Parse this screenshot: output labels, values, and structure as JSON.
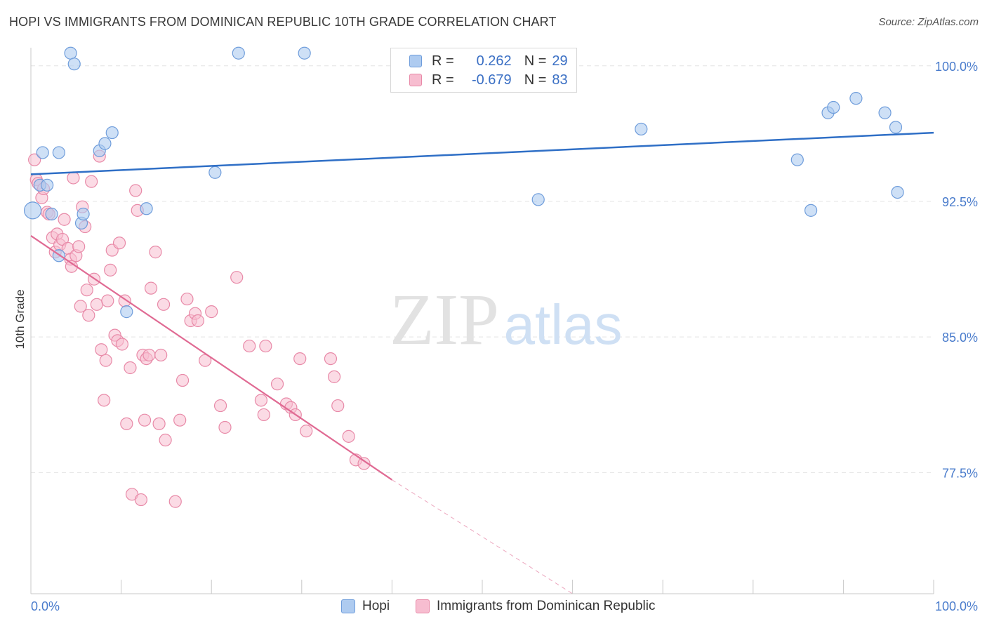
{
  "title": "HOPI VS IMMIGRANTS FROM DOMINICAN REPUBLIC 10TH GRADE CORRELATION CHART",
  "source": "Source: ZipAtlas.com",
  "watermark": {
    "zip": "ZIP",
    "atlas": "atlas"
  },
  "colors": {
    "hopi_fill": "#aecbf0",
    "hopi_stroke": "#6f9ddb",
    "hopi_line": "#2f6fc6",
    "dom_fill": "#f7bdd0",
    "dom_stroke": "#e88aa8",
    "dom_line": "#e06a93",
    "axis_text": "#4a7ccc",
    "grid": "#e4e4e4"
  },
  "legend": {
    "rows": [
      {
        "r_label": "R =",
        "r_value": "0.262",
        "n_label": "N =",
        "n_value": "29"
      },
      {
        "r_label": "R =",
        "r_value": "-0.679",
        "n_label": "N =",
        "n_value": "83"
      }
    ]
  },
  "bottom_legend": {
    "hopi": "Hopi",
    "dom": "Immigrants from Dominican Republic"
  },
  "chart_data": {
    "type": "scatter",
    "title": "HOPI VS IMMIGRANTS FROM DOMINICAN REPUBLIC 10TH GRADE CORRELATION CHART",
    "xlabel": "",
    "ylabel": "10th Grade",
    "xlim": [
      0,
      100
    ],
    "ylim": [
      70.8,
      101.0
    ],
    "x_tick_labels": [
      {
        "value": 0,
        "label": "0.0%"
      },
      {
        "value": 100,
        "label": "100.0%"
      }
    ],
    "y_ticks": [
      {
        "value": 100.0,
        "label": "100.0%"
      },
      {
        "value": 92.5,
        "label": "92.5%"
      },
      {
        "value": 85.0,
        "label": "85.0%"
      },
      {
        "value": 77.5,
        "label": "77.5%"
      }
    ],
    "series": [
      {
        "name": "Hopi",
        "points": [
          [
            0.2,
            92.0
          ],
          [
            1.3,
            95.2
          ],
          [
            1.0,
            93.4
          ],
          [
            1.8,
            93.4
          ],
          [
            2.3,
            91.8
          ],
          [
            3.1,
            95.2
          ],
          [
            3.1,
            89.5
          ],
          [
            4.4,
            100.7
          ],
          [
            4.8,
            100.1
          ],
          [
            5.6,
            91.3
          ],
          [
            5.8,
            91.8
          ],
          [
            7.6,
            95.3
          ],
          [
            8.2,
            95.7
          ],
          [
            9.0,
            96.3
          ],
          [
            10.6,
            86.4
          ],
          [
            12.8,
            92.1
          ],
          [
            20.4,
            94.1
          ],
          [
            23.0,
            100.7
          ],
          [
            30.3,
            100.7
          ],
          [
            56.2,
            92.6
          ],
          [
            67.6,
            96.5
          ],
          [
            84.9,
            94.8
          ],
          [
            86.4,
            92.0
          ],
          [
            88.3,
            97.4
          ],
          [
            88.9,
            97.7
          ],
          [
            91.4,
            98.2
          ],
          [
            94.6,
            97.4
          ],
          [
            95.8,
            96.6
          ],
          [
            96.0,
            93.0
          ]
        ],
        "trend": {
          "x1": 0,
          "y1": 94.0,
          "x2": 100,
          "y2": 96.3
        }
      },
      {
        "name": "Immigrants from Dominican Republic",
        "points": [
          [
            0.4,
            94.8
          ],
          [
            0.6,
            93.7
          ],
          [
            0.8,
            93.5
          ],
          [
            1.2,
            92.7
          ],
          [
            1.4,
            93.2
          ],
          [
            1.8,
            91.9
          ],
          [
            2.0,
            91.8
          ],
          [
            2.4,
            90.5
          ],
          [
            2.7,
            89.7
          ],
          [
            2.9,
            90.7
          ],
          [
            3.2,
            90.1
          ],
          [
            3.5,
            90.4
          ],
          [
            3.7,
            91.5
          ],
          [
            4.1,
            89.9
          ],
          [
            4.4,
            89.3
          ],
          [
            4.5,
            88.9
          ],
          [
            4.7,
            93.8
          ],
          [
            5.0,
            89.5
          ],
          [
            5.3,
            90.0
          ],
          [
            5.5,
            86.7
          ],
          [
            5.7,
            92.2
          ],
          [
            6.0,
            91.1
          ],
          [
            6.2,
            87.6
          ],
          [
            6.4,
            86.2
          ],
          [
            6.7,
            93.6
          ],
          [
            7.0,
            88.2
          ],
          [
            7.3,
            86.8
          ],
          [
            7.6,
            95.0
          ],
          [
            7.8,
            84.3
          ],
          [
            8.1,
            81.5
          ],
          [
            8.3,
            83.7
          ],
          [
            8.5,
            87.0
          ],
          [
            8.8,
            88.7
          ],
          [
            9.0,
            89.8
          ],
          [
            9.3,
            85.1
          ],
          [
            9.6,
            84.8
          ],
          [
            9.8,
            90.2
          ],
          [
            10.1,
            84.6
          ],
          [
            10.4,
            87.0
          ],
          [
            10.6,
            80.2
          ],
          [
            11.0,
            83.3
          ],
          [
            11.2,
            76.3
          ],
          [
            11.6,
            93.1
          ],
          [
            11.8,
            92.0
          ],
          [
            12.2,
            76.0
          ],
          [
            12.4,
            84.0
          ],
          [
            12.6,
            80.4
          ],
          [
            12.8,
            83.8
          ],
          [
            13.1,
            84.0
          ],
          [
            13.3,
            87.7
          ],
          [
            13.8,
            89.7
          ],
          [
            14.2,
            80.2
          ],
          [
            14.4,
            84.0
          ],
          [
            14.7,
            86.8
          ],
          [
            14.9,
            79.3
          ],
          [
            16.0,
            75.9
          ],
          [
            16.5,
            80.4
          ],
          [
            16.8,
            82.6
          ],
          [
            17.3,
            87.1
          ],
          [
            17.7,
            85.9
          ],
          [
            18.2,
            86.3
          ],
          [
            18.5,
            85.9
          ],
          [
            19.3,
            83.7
          ],
          [
            20.0,
            86.4
          ],
          [
            21.0,
            81.2
          ],
          [
            21.5,
            80.0
          ],
          [
            22.8,
            88.3
          ],
          [
            24.2,
            84.5
          ],
          [
            25.5,
            81.5
          ],
          [
            25.8,
            80.7
          ],
          [
            26.0,
            84.5
          ],
          [
            27.3,
            82.4
          ],
          [
            28.3,
            81.3
          ],
          [
            28.8,
            81.1
          ],
          [
            29.3,
            80.7
          ],
          [
            29.8,
            83.8
          ],
          [
            30.5,
            79.8
          ],
          [
            33.2,
            83.8
          ],
          [
            33.6,
            82.8
          ],
          [
            34.0,
            81.2
          ],
          [
            35.2,
            79.5
          ],
          [
            36.0,
            78.2
          ],
          [
            36.9,
            78.0
          ]
        ],
        "trend": {
          "x1": 0,
          "y1": 90.6,
          "x2": 40.0,
          "y2": 77.1
        },
        "trend_dashed_extension": {
          "x1": 40.0,
          "y1": 77.1,
          "x2": 60.0,
          "y2": 70.8
        }
      }
    ]
  }
}
